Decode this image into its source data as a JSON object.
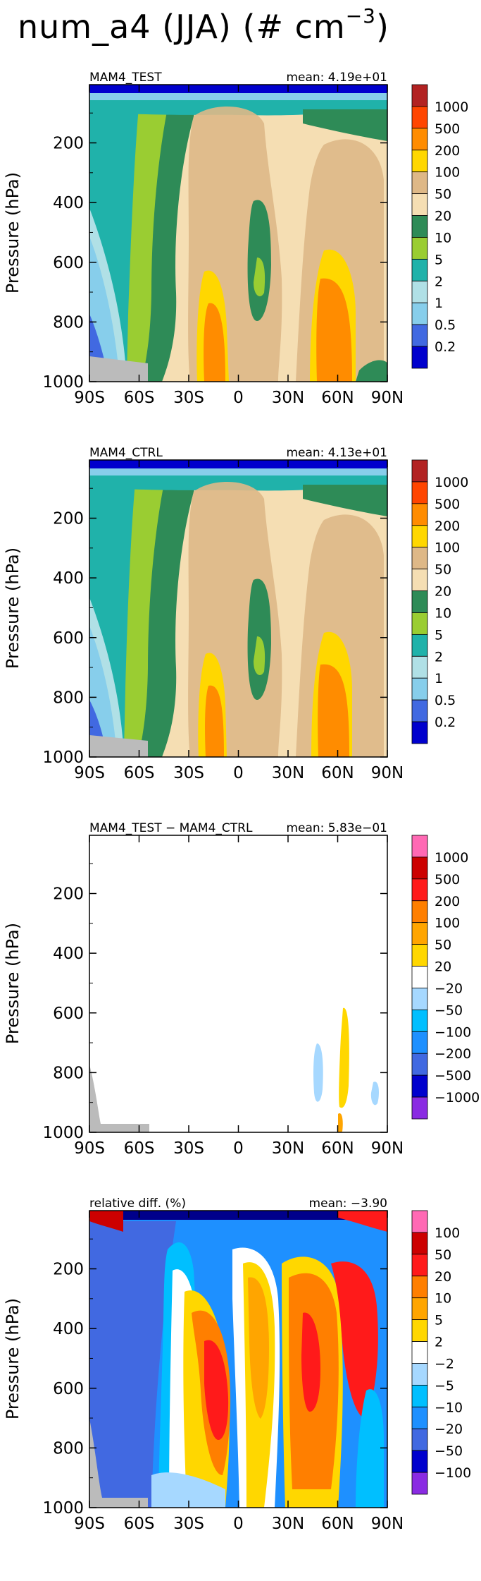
{
  "title": {
    "base": "num_a4 (JJA) (# cm",
    "exponent": "−3",
    "closing": ")"
  },
  "chart_data": [
    {
      "type": "heatmap",
      "left_title": "MAM4_TEST",
      "right_title": "mean: 4.19e+01",
      "xlabel": "",
      "ylabel": "Pressure (hPa)",
      "xlim": [
        -90,
        90
      ],
      "ylim": [
        1000,
        5
      ],
      "x_ticks": [
        {
          "v": -90,
          "label": "90S"
        },
        {
          "v": -60,
          "label": "60S"
        },
        {
          "v": -30,
          "label": "30S"
        },
        {
          "v": 0,
          "label": "0"
        },
        {
          "v": 30,
          "label": "30N"
        },
        {
          "v": 60,
          "label": "60N"
        },
        {
          "v": 90,
          "label": "90N"
        }
      ],
      "y_ticks": [
        {
          "v": 200,
          "label": "200"
        },
        {
          "v": 400,
          "label": "400"
        },
        {
          "v": 600,
          "label": "600"
        },
        {
          "v": 800,
          "label": "800"
        },
        {
          "v": 1000,
          "label": "1000"
        }
      ],
      "colorbar": {
        "labels": [
          "1000",
          "500",
          "200",
          "100",
          "50",
          "20",
          "10",
          "5",
          "2",
          "1",
          "0.5",
          "0.2"
        ],
        "colors": [
          "#b22222",
          "#ff4500",
          "#ff8c00",
          "#ffd700",
          "#deb887",
          "#f5deb3",
          "#2e8b57",
          "#9acd32",
          "#20b2aa",
          "#b0e0e6",
          "#87ceeb",
          "#4169e1",
          "#0000cd"
        ]
      }
    },
    {
      "type": "heatmap",
      "left_title": "MAM4_CTRL",
      "right_title": "mean: 4.13e+01",
      "xlabel": "",
      "ylabel": "Pressure (hPa)",
      "xlim": [
        -90,
        90
      ],
      "ylim": [
        1000,
        5
      ],
      "x_ticks": [
        {
          "v": -90,
          "label": "90S"
        },
        {
          "v": -60,
          "label": "60S"
        },
        {
          "v": -30,
          "label": "30S"
        },
        {
          "v": 0,
          "label": "0"
        },
        {
          "v": 30,
          "label": "30N"
        },
        {
          "v": 60,
          "label": "60N"
        },
        {
          "v": 90,
          "label": "90N"
        }
      ],
      "y_ticks": [
        {
          "v": 200,
          "label": "200"
        },
        {
          "v": 400,
          "label": "400"
        },
        {
          "v": 600,
          "label": "600"
        },
        {
          "v": 800,
          "label": "800"
        },
        {
          "v": 1000,
          "label": "1000"
        }
      ],
      "colorbar": {
        "labels": [
          "1000",
          "500",
          "200",
          "100",
          "50",
          "20",
          "10",
          "5",
          "2",
          "1",
          "0.5",
          "0.2"
        ],
        "colors": [
          "#b22222",
          "#ff4500",
          "#ff8c00",
          "#ffd700",
          "#deb887",
          "#f5deb3",
          "#2e8b57",
          "#9acd32",
          "#20b2aa",
          "#b0e0e6",
          "#87ceeb",
          "#4169e1",
          "#0000cd"
        ]
      }
    },
    {
      "type": "heatmap",
      "left_title": "MAM4_TEST − MAM4_CTRL",
      "right_title": "mean: 5.83e−01",
      "xlabel": "",
      "ylabel": "Pressure (hPa)",
      "xlim": [
        -90,
        90
      ],
      "ylim": [
        1000,
        5
      ],
      "x_ticks": [
        {
          "v": -90,
          "label": "90S"
        },
        {
          "v": -60,
          "label": "60S"
        },
        {
          "v": -30,
          "label": "30S"
        },
        {
          "v": 0,
          "label": "0"
        },
        {
          "v": 30,
          "label": "30N"
        },
        {
          "v": 60,
          "label": "60N"
        },
        {
          "v": 90,
          "label": "90N"
        }
      ],
      "y_ticks": [
        {
          "v": 200,
          "label": "200"
        },
        {
          "v": 400,
          "label": "400"
        },
        {
          "v": 600,
          "label": "600"
        },
        {
          "v": 800,
          "label": "800"
        },
        {
          "v": 1000,
          "label": "1000"
        }
      ],
      "colorbar": {
        "labels": [
          "1000",
          "500",
          "200",
          "100",
          "50",
          "20",
          "−20",
          "−50",
          "−100",
          "−200",
          "−500",
          "−1000"
        ],
        "colors": [
          "#ff69b4",
          "#cc0000",
          "#ff1a1a",
          "#ff7f00",
          "#ffa500",
          "#ffd700",
          "#ffffff",
          "#a6d8ff",
          "#00bfff",
          "#1e90ff",
          "#4169e1",
          "#0000cd",
          "#8a2be2"
        ]
      }
    },
    {
      "type": "heatmap",
      "left_title": "relative diff. (%)",
      "right_title": "mean: −3.90",
      "xlabel": "",
      "ylabel": "Pressure (hPa)",
      "xlim": [
        -90,
        90
      ],
      "ylim": [
        1000,
        5
      ],
      "x_ticks": [
        {
          "v": -90,
          "label": "90S"
        },
        {
          "v": -60,
          "label": "60S"
        },
        {
          "v": -30,
          "label": "30S"
        },
        {
          "v": 0,
          "label": "0"
        },
        {
          "v": 30,
          "label": "30N"
        },
        {
          "v": 60,
          "label": "60N"
        },
        {
          "v": 90,
          "label": "90N"
        }
      ],
      "y_ticks": [
        {
          "v": 200,
          "label": "200"
        },
        {
          "v": 400,
          "label": "400"
        },
        {
          "v": 600,
          "label": "600"
        },
        {
          "v": 800,
          "label": "800"
        },
        {
          "v": 1000,
          "label": "1000"
        }
      ],
      "colorbar": {
        "labels": [
          "100",
          "50",
          "20",
          "10",
          "5",
          "2",
          "−2",
          "−5",
          "−10",
          "−20",
          "−50",
          "−100"
        ],
        "colors": [
          "#ff69b4",
          "#cc0000",
          "#ff1a1a",
          "#ff7f00",
          "#ffa500",
          "#ffd700",
          "#ffffff",
          "#a6d8ff",
          "#00bfff",
          "#1e90ff",
          "#4169e1",
          "#0000cd",
          "#8a2be2"
        ]
      }
    }
  ]
}
